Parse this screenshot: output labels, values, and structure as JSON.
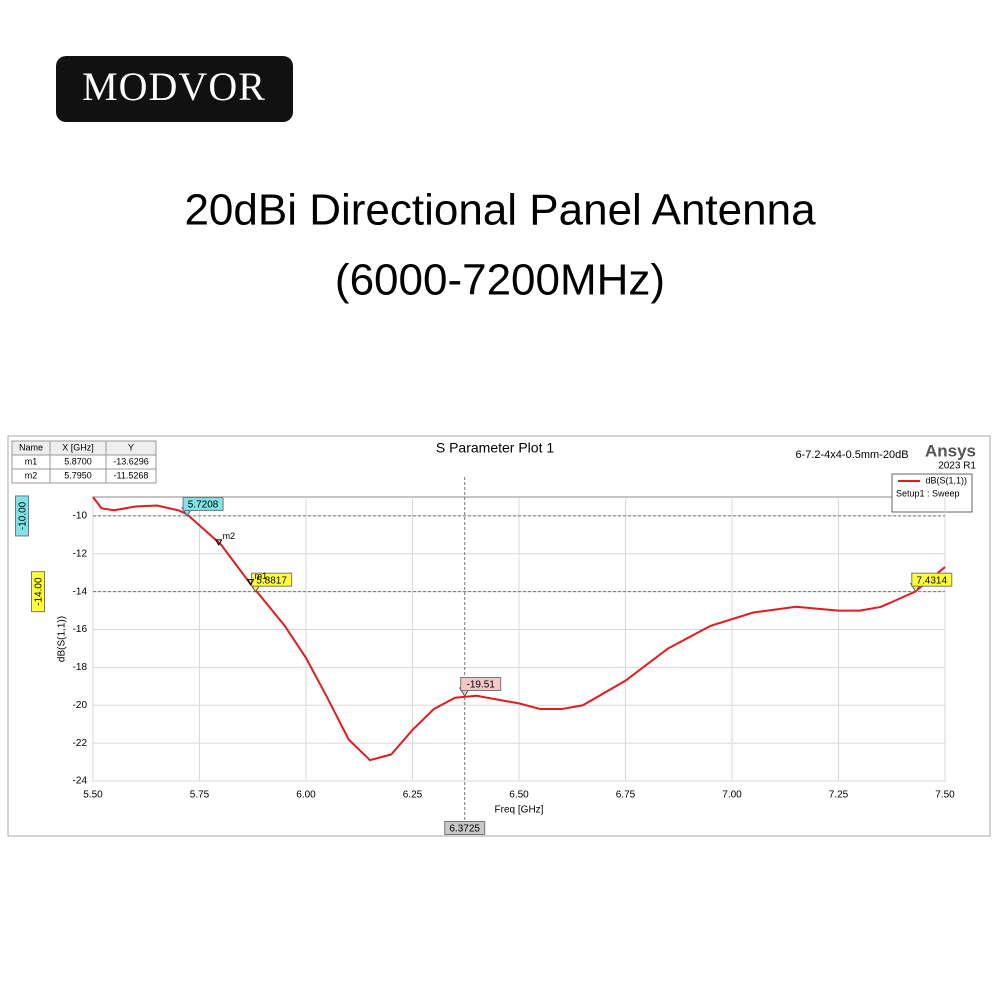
{
  "header": {
    "brand": "MODVOR",
    "title_lines": [
      "20dBi Directional Panel Antenna",
      "(6000-7200MHz)"
    ]
  },
  "chart_data": {
    "type": "line",
    "title": "S Parameter Plot 1",
    "design_name": "6-7.2-4x4-0.5mm-20dB",
    "vendor": "Ansys",
    "version": "2023 R1",
    "x_label": "Freq [GHz]",
    "y_label": "dB(S(1,1))",
    "setup": "Setup1 : Sweep",
    "xlim": [
      5.5,
      7.5
    ],
    "ylim": [
      -24,
      -9
    ],
    "xticks": [
      {
        "value": 5.5,
        "label": "5.50"
      },
      5.75,
      {
        "value": 6,
        "label": "6.00"
      },
      6.25,
      {
        "value": 6.5,
        "label": "6.50"
      },
      6.75,
      {
        "value": 7,
        "label": "7.00"
      },
      7.25,
      {
        "value": 7.5,
        "label": "7.50"
      }
    ],
    "yticks": [
      -10,
      -12,
      -14,
      -16,
      -18,
      -20,
      -22,
      -24
    ],
    "grid": true,
    "x": [
      5.5,
      5.52,
      5.55,
      5.6,
      5.65,
      5.7,
      5.72,
      5.8,
      5.87,
      5.95,
      6.0,
      6.05,
      6.1,
      6.15,
      6.2,
      6.25,
      6.3,
      6.35,
      6.4,
      6.45,
      6.5,
      6.55,
      6.6,
      6.65,
      6.75,
      6.85,
      6.95,
      7.05,
      7.15,
      7.25,
      7.3,
      7.35,
      7.43,
      7.5
    ],
    "series": [
      {
        "name": "dB(S(1,1))",
        "color": "#e41a1c",
        "values": [
          -9.0,
          -9.6,
          -9.7,
          -9.5,
          -9.45,
          -9.7,
          -9.9,
          -11.5,
          -13.6,
          -15.8,
          -17.5,
          -19.6,
          -21.8,
          -22.9,
          -22.6,
          -21.3,
          -20.2,
          -19.6,
          -19.5,
          -19.7,
          -19.9,
          -20.2,
          -20.2,
          -20.0,
          -18.7,
          -17.0,
          -15.8,
          -15.1,
          -14.8,
          -15.0,
          -15.0,
          -14.8,
          -14.0,
          -12.7
        ]
      }
    ],
    "marker_table": {
      "columns": [
        "Name",
        "X [GHz]",
        "Y"
      ]
    },
    "markers": [
      {
        "name": "m1",
        "x": {
          "value": 5.87,
          "label": "5.8700"
        },
        "y": {
          "value": -13.6296,
          "label": "-13.6296"
        }
      },
      {
        "name": "m2",
        "x": {
          "value": 5.795,
          "label": "5.7950"
        },
        "y": {
          "value": -11.5268,
          "label": "-11.5268"
        }
      }
    ],
    "h_markers": [
      {
        "value": -10,
        "label": "-10.00",
        "color": "#7fe3e8"
      },
      {
        "value": -14,
        "label": "-14.00",
        "color": "#ffff33"
      }
    ],
    "v_marker": {
      "value": 6.3725,
      "label": "6.3725",
      "color": "#c8c8c8"
    },
    "point_labels": [
      {
        "x": 5.7208,
        "y": -10,
        "label": "5.7208",
        "color": "#7fe3e8"
      },
      {
        "x": 5.8817,
        "y": -14,
        "label": "5.8817",
        "color": "#ffff33"
      },
      {
        "x": 7.4314,
        "y": -14,
        "label": "7.4314",
        "color": "#ffff33"
      },
      {
        "x": 6.3725,
        "y": -19.51,
        "label": "-19.51",
        "color": "#f4c8c8"
      }
    ]
  }
}
